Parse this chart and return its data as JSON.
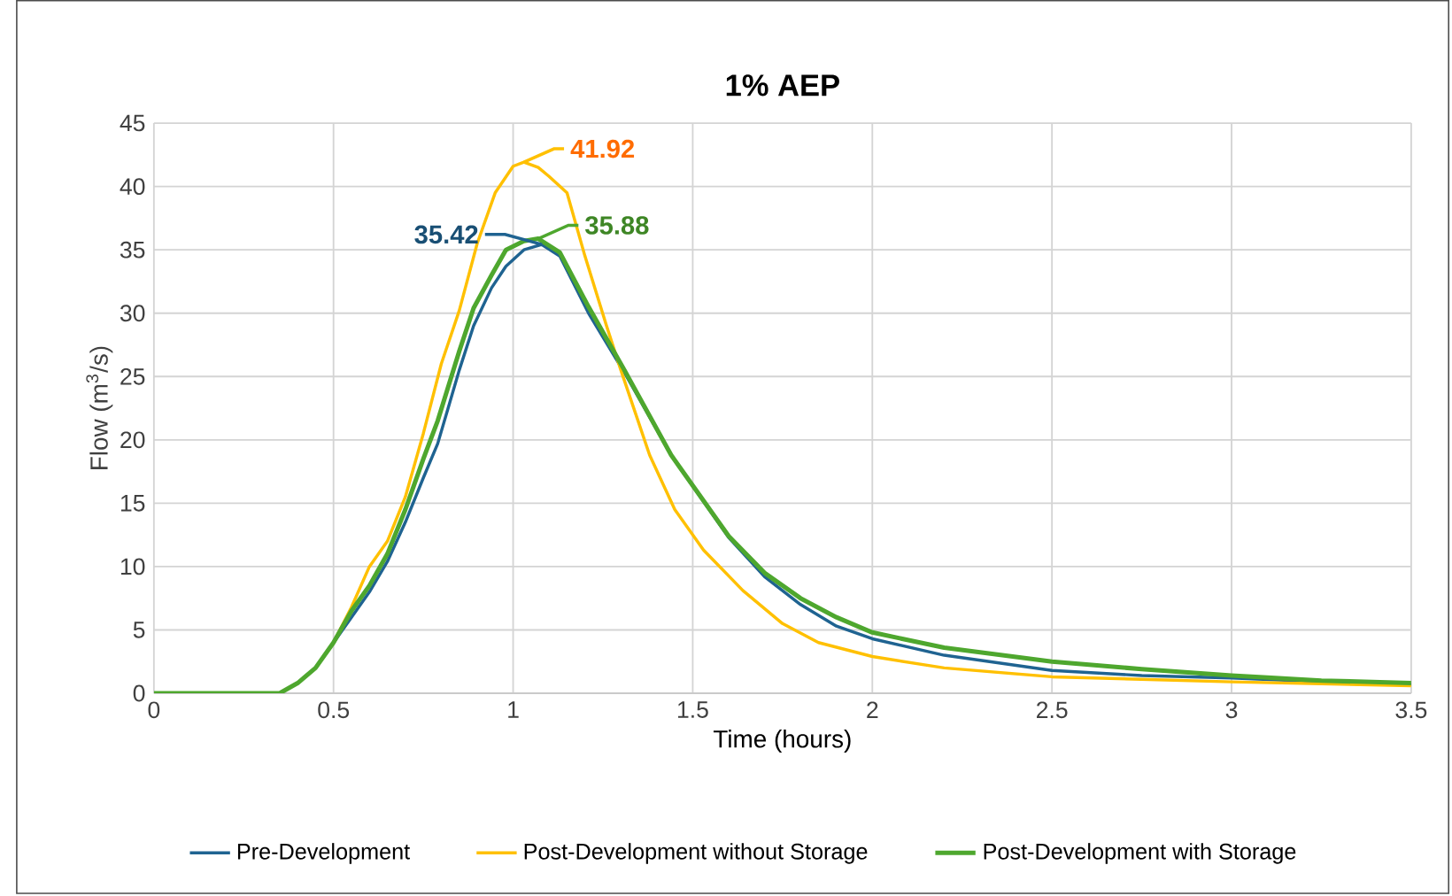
{
  "chart_data": {
    "type": "line",
    "title": "1% AEP",
    "xlabel": "Time (hours)",
    "ylabel": "Flow (m$^{3}$/s)",
    "xlim": [
      0,
      3.5
    ],
    "ylim": [
      0,
      45
    ],
    "xticks": [
      0,
      0.5,
      1,
      1.5,
      2,
      2.5,
      3,
      3.5
    ],
    "yticks": [
      0,
      5,
      10,
      15,
      20,
      25,
      30,
      35,
      40,
      45
    ],
    "grid": true,
    "legend": "bottom",
    "marker": "none",
    "line_style": "solid",
    "series": [
      {
        "name": "Pre-Development",
        "color": "#1f6391",
        "x": [
          0.45,
          0.5,
          0.55,
          0.6,
          0.65,
          0.7,
          0.75,
          0.79,
          0.85,
          0.89,
          0.94,
          0.98,
          1.03,
          1.08,
          1.13,
          1.21,
          1.31,
          1.44,
          1.6,
          1.7,
          1.8,
          1.9,
          2.0,
          2.2,
          2.5,
          2.75,
          3.0,
          3.25,
          3.5
        ],
        "values": [
          2,
          4,
          6,
          8,
          10.4,
          13.5,
          17,
          19.7,
          25.5,
          29,
          32,
          33.7,
          35,
          35.42,
          34.5,
          30,
          25.3,
          18.8,
          12.3,
          9.2,
          7,
          5.3,
          4.3,
          3,
          1.8,
          1.4,
          1.2,
          0.9,
          0.7
        ]
      },
      {
        "name": "Post-Development without Storage",
        "color": "#ffc000",
        "x": [
          0.45,
          0.5,
          0.55,
          0.6,
          0.65,
          0.7,
          0.75,
          0.8,
          0.85,
          0.9,
          0.95,
          1.0,
          1.03,
          1.07,
          1.1,
          1.15,
          1.2,
          1.26,
          1.3,
          1.38,
          1.45,
          1.53,
          1.64,
          1.75,
          1.85,
          2.0,
          2.2,
          2.5,
          3.0,
          3.5
        ],
        "values": [
          2,
          4,
          6.8,
          10,
          12,
          15.5,
          20.5,
          26,
          30.2,
          35.5,
          39.5,
          41.6,
          41.92,
          41.5,
          40.8,
          39.5,
          34.5,
          29,
          25.5,
          18.8,
          14.5,
          11.3,
          8.1,
          5.5,
          4,
          2.9,
          2,
          1.3,
          0.9,
          0.6
        ]
      },
      {
        "name": "Post-Development with Storage",
        "color": "#4ea72e",
        "x": [
          0,
          0.35,
          0.4,
          0.45,
          0.5,
          0.55,
          0.6,
          0.65,
          0.7,
          0.75,
          0.79,
          0.85,
          0.89,
          0.94,
          0.98,
          1.03,
          1.07,
          1.13,
          1.21,
          1.31,
          1.44,
          1.6,
          1.7,
          1.8,
          1.9,
          2.0,
          2.2,
          2.5,
          2.75,
          3.0,
          3.25,
          3.5
        ],
        "values": [
          0,
          0,
          0.8,
          2,
          4,
          6.5,
          8.5,
          11,
          14.5,
          18.5,
          21.5,
          27,
          30.4,
          33,
          35,
          35.7,
          35.88,
          34.8,
          30.5,
          25.5,
          18.8,
          12.4,
          9.5,
          7.5,
          6,
          4.8,
          3.6,
          2.5,
          1.9,
          1.4,
          1,
          0.8
        ]
      }
    ],
    "annotations": [
      {
        "text": "35.42",
        "x": 1.08,
        "y": 35.42
      },
      {
        "text": "41.92",
        "x": 1.03,
        "y": 41.92
      },
      {
        "text": "35.88",
        "x": 1.07,
        "y": 35.88
      }
    ]
  }
}
